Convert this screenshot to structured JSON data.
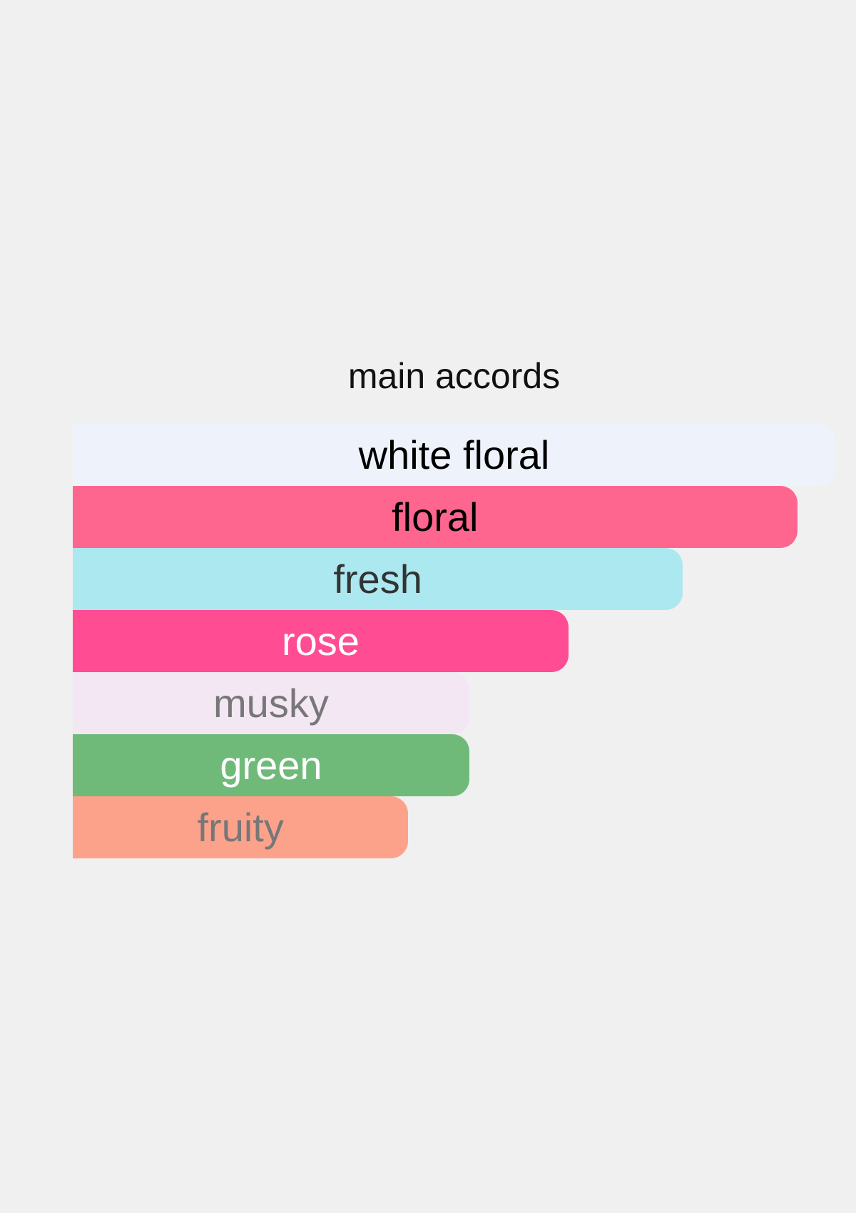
{
  "chart_data": {
    "type": "bar",
    "orientation": "horizontal",
    "title": "main accords",
    "categories": [
      "white floral",
      "floral",
      "fresh",
      "rose",
      "musky",
      "green",
      "fruity"
    ],
    "values": [
      100,
      95,
      80,
      65,
      52,
      52,
      44
    ],
    "unit": "percent of strongest accord",
    "colors": [
      "#eef3fb",
      "#ff668f",
      "#ace8f0",
      "#ff4c93",
      "#f3e7f3",
      "#70ba79",
      "#fca28a"
    ],
    "text_colors": [
      "#000000",
      "#000000",
      "#333333",
      "#ffffff",
      "#777777",
      "#ffffff",
      "#777777"
    ],
    "grid": false,
    "legend": "none"
  }
}
